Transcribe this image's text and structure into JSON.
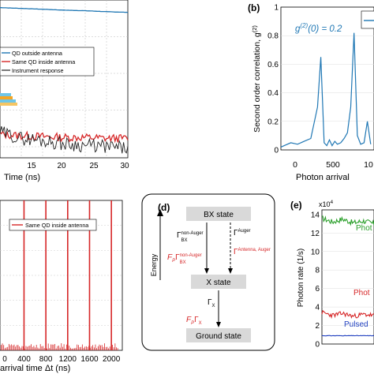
{
  "chart_data": [
    {
      "type": "line",
      "panel": "a",
      "xlabel": "Time (ns)",
      "xticks": [
        "15",
        "20",
        "25",
        "30"
      ],
      "xlim": [
        0,
        30
      ],
      "ylog": true,
      "grid": true,
      "legend_position": "middle-right",
      "legend": [
        "QD outside antenna",
        "Same QD inside antenna",
        "Instrument response"
      ],
      "series": [
        {
          "name": "QD outside antenna",
          "color": "#1f77b4",
          "x": [
            0,
            5,
            10,
            15,
            20,
            25,
            30
          ],
          "y": [
            0.62,
            0.59,
            0.56,
            0.53,
            0.51,
            0.48,
            0.46
          ]
        },
        {
          "name": "Same QD inside antenna",
          "color": "#d62728",
          "x": [
            0,
            5,
            10,
            15,
            20,
            25,
            30
          ],
          "y": [
            0.00022,
            0.0002,
            0.00019,
            0.00018,
            0.00018,
            0.00017,
            0.00017
          ]
        },
        {
          "name": "Instrument response",
          "color": "#222222",
          "x": [
            0,
            5,
            10,
            15,
            20,
            25,
            30
          ],
          "y": [
            0.00025,
            0.00017,
            0.00015,
            0.00012,
            0.00011,
            0.0001,
            9e-05
          ]
        }
      ]
    },
    {
      "type": "line",
      "panel": "b",
      "ylabel": "Second order correlation, g^(2)",
      "xlabel": "Photon arrival",
      "xticks": [
        "0",
        "500",
        "10"
      ],
      "yticks": [
        "0",
        "0.2",
        "0.4",
        "0.6",
        "0.8",
        "1"
      ],
      "ylim": [
        0,
        1
      ],
      "annotation": "g^(2)(0) = 0.2",
      "series": [
        {
          "name": "",
          "color": "#1f77b4",
          "x": [
            -250,
            -200,
            -100,
            0,
            100,
            200,
            300,
            350,
            400,
            440,
            480,
            520,
            560,
            600,
            650,
            700,
            750,
            800,
            850,
            900,
            950,
            1000,
            1050,
            1100
          ],
          "y": [
            0.02,
            0.03,
            0.05,
            0.04,
            0.06,
            0.08,
            0.3,
            0.65,
            0.05,
            0.03,
            0.07,
            0.03,
            0.06,
            0.04,
            0.05,
            0.08,
            0.12,
            0.3,
            0.82,
            0.1,
            0.04,
            0.05,
            0.2,
            0.04
          ]
        }
      ]
    },
    {
      "type": "bar",
      "panel": "c",
      "xlabel": "arrival time Δt (ns)",
      "xticks": [
        "0",
        "400",
        "800",
        "1200",
        "1600",
        "2000"
      ],
      "xlim": [
        -40,
        2200
      ],
      "legend": [
        "Same QD inside antenna"
      ],
      "series": [
        {
          "name": "Same QD inside antenna",
          "color": "#d62728",
          "x": [
            400,
            800,
            1200,
            1600,
            2000
          ],
          "values": [
            1,
            1,
            1,
            1,
            1
          ]
        }
      ]
    },
    {
      "type": "line",
      "panel": "e",
      "ylabel": "Photon rate (1/s)",
      "yticks": [
        "0",
        "2",
        "4",
        "6",
        "8",
        "10",
        "12",
        "14"
      ],
      "ylim": [
        0,
        14.5
      ],
      "yscale_label": "x10^4",
      "series": [
        {
          "name": "Phot",
          "color": "#2ca02c",
          "x": [
            0,
            1,
            2,
            3,
            4,
            5
          ],
          "y": [
            13.6,
            13.2,
            13.5,
            13.1,
            13.3,
            13.0
          ]
        },
        {
          "name": "Phot",
          "color": "#d62728",
          "x": [
            0,
            1,
            2,
            3,
            4,
            5
          ],
          "y": [
            3.4,
            3.1,
            3.3,
            3.0,
            3.2,
            3.1
          ]
        },
        {
          "name": "Pulsed",
          "color": "#1f3fbf",
          "x": [
            0,
            1,
            2,
            3,
            4,
            5
          ],
          "y": [
            0.9,
            0.9,
            0.9,
            0.9,
            0.9,
            0.9
          ]
        }
      ]
    }
  ],
  "panel_labels": {
    "b": "(b)",
    "d": "(d)",
    "e": "(e)"
  },
  "diagram": {
    "ylabel": "Energy",
    "states": {
      "bx": "BX state",
      "x": "X state",
      "ground": "Ground state"
    },
    "rates": {
      "non_auger": "Γ",
      "non_auger_sup": "non-Auger",
      "non_auger_sub": "BX",
      "auger": "Γ",
      "auger_sup": "Auger",
      "fp_non_auger": "F",
      "fp_sub": "P",
      "fp_gamma": "Γ",
      "fp_non_auger_sup": "non-Auger",
      "fp_non_auger_sub": "BX",
      "fp_auger_sup": "Antenna, Auger",
      "x_rate": "Γ",
      "x_sub": "X",
      "fp_x_sub": "X"
    }
  },
  "colors": {
    "blue": "#1f77b4",
    "red": "#d62728",
    "green": "#2ca02c",
    "dark_blue": "#1f3fbf",
    "black": "#222222",
    "orange": "#f5a623",
    "cyan": "#6ec6e8"
  }
}
